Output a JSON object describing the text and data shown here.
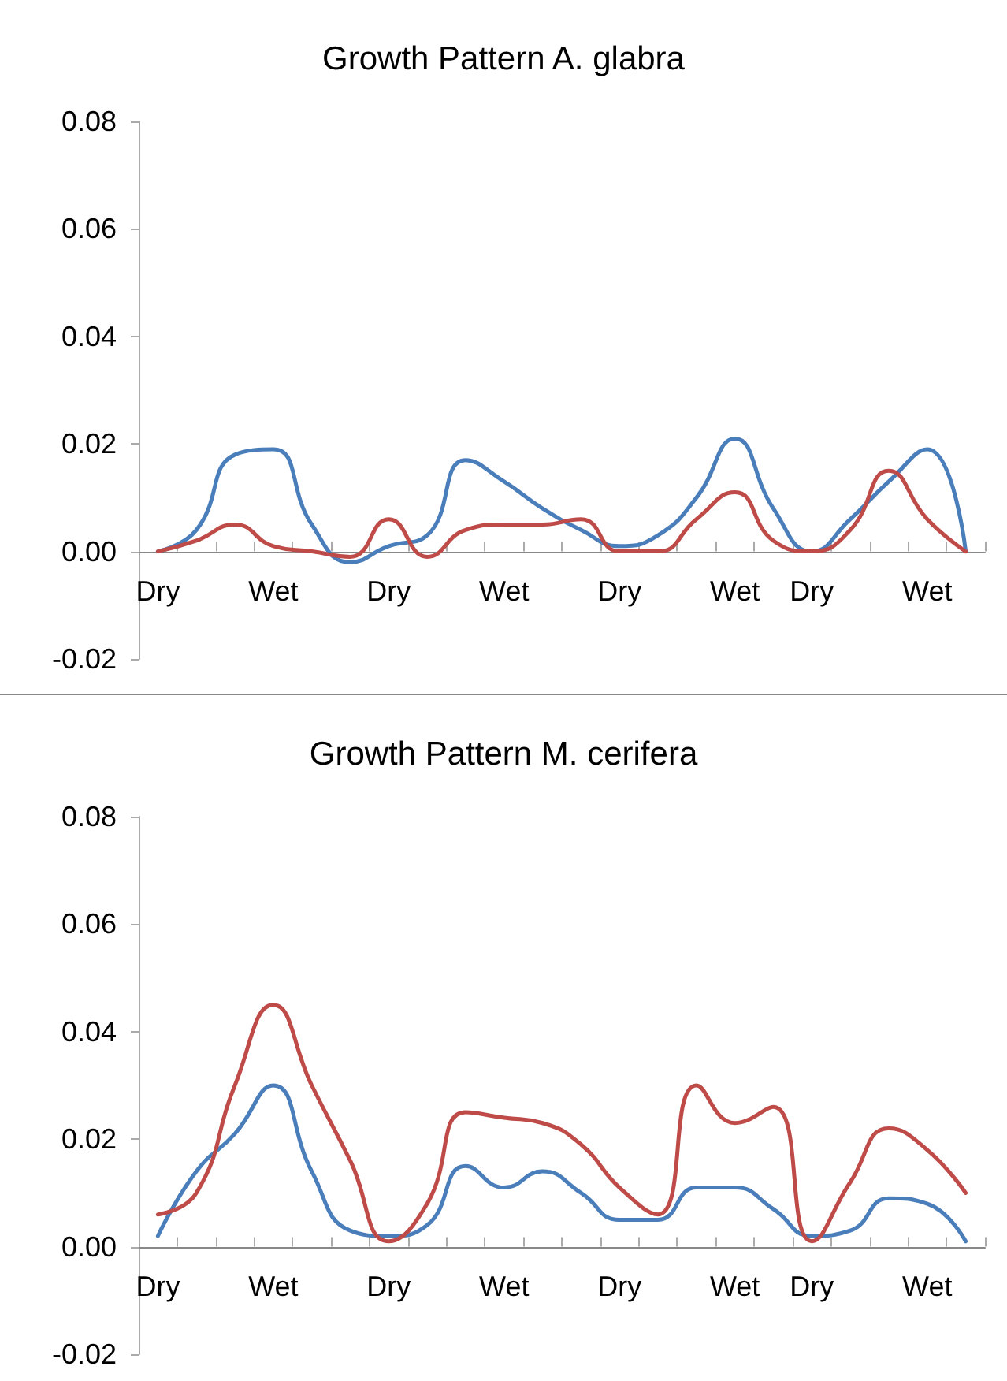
{
  "chart_data": [
    {
      "type": "line",
      "title": "Growth Pattern A. glabra",
      "marker": "none",
      "line_style": "solid",
      "categories": [
        "Dry",
        null,
        null,
        "Wet",
        null,
        null,
        "Dry",
        null,
        null,
        "Wet",
        null,
        null,
        "Dry",
        null,
        null,
        "Wet",
        null,
        "Dry",
        null,
        null,
        "Wet",
        null
      ],
      "ylim": [
        -0.02,
        0.08
      ],
      "yticks": [
        {
          "value": -0.02,
          "label": "-0.02"
        },
        {
          "value": 0,
          "label": "0.00"
        },
        {
          "value": 0.02,
          "label": "0.02"
        },
        {
          "value": 0.04,
          "label": "0.04"
        },
        {
          "value": 0.06,
          "label": "0.06"
        },
        {
          "value": 0.08,
          "label": "0.08"
        }
      ],
      "series": [
        {
          "color": "#4a7ebb",
          "values": [
            0,
            0.004,
            0.018,
            0.019,
            0.005,
            -0.002,
            0.001,
            0.003,
            0.017,
            0.013,
            0.008,
            0.004,
            0.001,
            0.003,
            0.01,
            0.021,
            0.008,
            0.0,
            0.006,
            0.013,
            0.019,
            0
          ]
        },
        {
          "color": "#be4b48",
          "values": [
            0,
            0.002,
            0.005,
            0.001,
            0.0,
            -0.001,
            0.006,
            -0.001,
            0.004,
            0.005,
            0.005,
            0.006,
            0.0,
            0.0,
            0.006,
            0.011,
            0.002,
            0.0,
            0.004,
            0.015,
            0.006,
            0
          ]
        }
      ]
    },
    {
      "type": "line",
      "title": "Growth Pattern M. cerifera",
      "marker": "none",
      "line_style": "solid",
      "categories": [
        "Dry",
        null,
        null,
        "Wet",
        null,
        null,
        "Dry",
        null,
        null,
        "Wet",
        null,
        null,
        "Dry",
        null,
        null,
        "Wet",
        null,
        "Dry",
        null,
        null,
        "Wet",
        null
      ],
      "ylim": [
        -0.02,
        0.08
      ],
      "yticks": [
        {
          "value": -0.02,
          "label": "-0.02"
        },
        {
          "value": 0,
          "label": "0.00"
        },
        {
          "value": 0.02,
          "label": "0.02"
        },
        {
          "value": 0.04,
          "label": "0.04"
        },
        {
          "value": 0.06,
          "label": "0.06"
        },
        {
          "value": 0.08,
          "label": "0.08"
        }
      ],
      "series": [
        {
          "color": "#4a7ebb",
          "values": [
            0.002,
            0.014,
            0.021,
            0.03,
            0.014,
            0.003,
            0.002,
            0.004,
            0.015,
            0.011,
            0.014,
            0.01,
            0.005,
            0.005,
            0.011,
            0.011,
            0.007,
            0.002,
            0.003,
            0.009,
            0.008,
            0.001
          ]
        },
        {
          "color": "#be4b48",
          "values": [
            0.006,
            0.01,
            0.03,
            0.045,
            0.03,
            0.016,
            0.001,
            0.008,
            0.025,
            0.024,
            0.023,
            0.019,
            0.011,
            0.006,
            0.03,
            0.023,
            0.026,
            0.001,
            0.012,
            0.022,
            0.018,
            0.01
          ]
        }
      ]
    }
  ]
}
